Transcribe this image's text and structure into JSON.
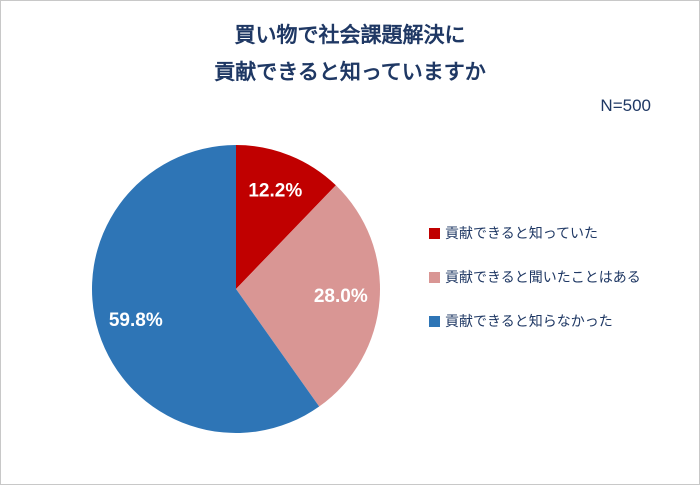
{
  "title": {
    "line1": "買い物で社会課題解決に",
    "line2": "貢献できると知っていますか"
  },
  "sample_size": "N=500",
  "chart_data": {
    "type": "pie",
    "title": "買い物で社会課題解決に貢献できると知っていますか",
    "sample_size": "N=500",
    "categories": [
      "貢献できると知っていた",
      "貢献できると聞いたことはある",
      "貢献できると知らなかった"
    ],
    "values": [
      12.2,
      28.0,
      59.8
    ],
    "data_labels": [
      "12.2%",
      "28.0%",
      "59.8%"
    ],
    "colors": [
      "#c00000",
      "#d99694",
      "#2e75b6"
    ],
    "start_angle_deg": 0,
    "direction": "clockwise",
    "legend_position": "right",
    "data_label_color": "#ffffff",
    "title_color": "#1f3864"
  },
  "legend": {
    "items": [
      {
        "label": "貢献できると知っていた",
        "color": "#c00000"
      },
      {
        "label": "貢献できると聞いたことはある",
        "color": "#d99694"
      },
      {
        "label": "貢献できると知らなかった",
        "color": "#2e75b6"
      }
    ]
  }
}
